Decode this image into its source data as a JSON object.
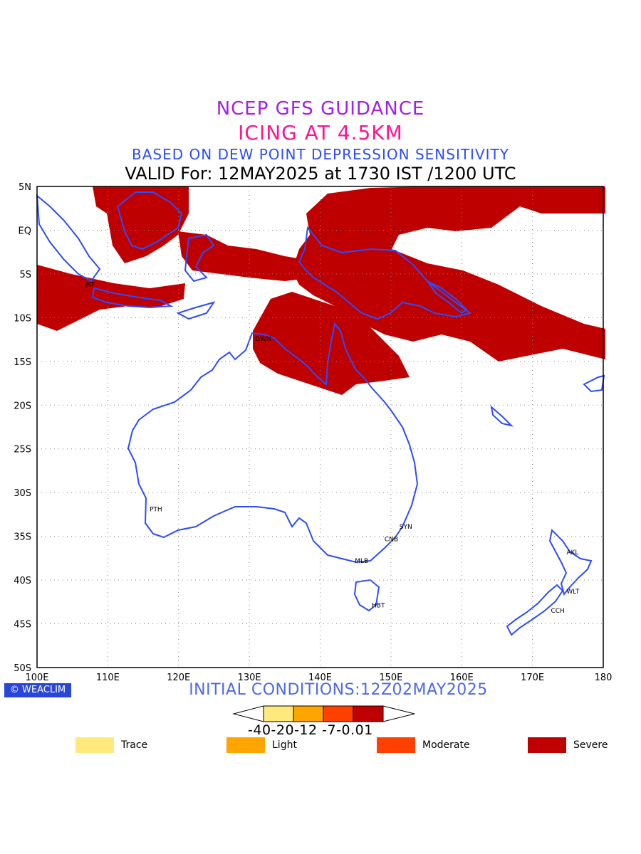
{
  "titles": {
    "line1": "NCEP GFS GUIDANCE",
    "line2": "ICING AT 4.5KM",
    "line3": "BASED ON DEW POINT DEPRESSION SENSITIVITY",
    "line4": "VALID For: 12MAY2025 at 1730 IST /1200 UTC"
  },
  "map": {
    "lon_range": [
      100,
      180
    ],
    "lat_range": [
      -50,
      5
    ],
    "grid": "dotted",
    "x_ticks": [
      "100E",
      "110E",
      "120E",
      "130E",
      "140E",
      "150E",
      "160E",
      "170E",
      "180"
    ],
    "y_ticks": [
      "5N",
      "EQ",
      "5S",
      "10S",
      "15S",
      "20S",
      "25S",
      "30S",
      "35S",
      "40S",
      "45S",
      "50S"
    ],
    "cities": [
      {
        "code": "JKT",
        "lon": 106.8,
        "lat": -6.2
      },
      {
        "code": "DWN",
        "lon": 130.8,
        "lat": -12.4
      },
      {
        "code": "PTH",
        "lon": 115.9,
        "lat": -31.9
      },
      {
        "code": "SYN",
        "lon": 151.2,
        "lat": -33.9
      },
      {
        "code": "CNB",
        "lon": 149.1,
        "lat": -35.3
      },
      {
        "code": "MLB",
        "lon": 144.9,
        "lat": -37.8
      },
      {
        "code": "HBT",
        "lon": 147.3,
        "lat": -42.9
      },
      {
        "code": "AKL",
        "lon": 174.8,
        "lat": -36.8
      },
      {
        "code": "WLT",
        "lon": 174.8,
        "lat": -41.3
      },
      {
        "code": "CCH",
        "lon": 172.6,
        "lat": -43.5
      }
    ],
    "coast_color": "#2b4cff",
    "severe_color": "#bf0000"
  },
  "footer": {
    "logo": "WEACLIM",
    "initial": "INITIAL CONDITIONS:12Z02MAY2025"
  },
  "colorbar": {
    "labels": "-40-20-12 -7-0.01",
    "colors": [
      "#ffe87c",
      "#ffa500",
      "#ff4000",
      "#bf0000"
    ]
  },
  "legend": [
    {
      "label": "Trace",
      "color": "#ffe87c"
    },
    {
      "label": "Light",
      "color": "#ffa500"
    },
    {
      "label": "Moderate",
      "color": "#ff4000"
    },
    {
      "label": "Severe",
      "color": "#bf0000"
    }
  ]
}
